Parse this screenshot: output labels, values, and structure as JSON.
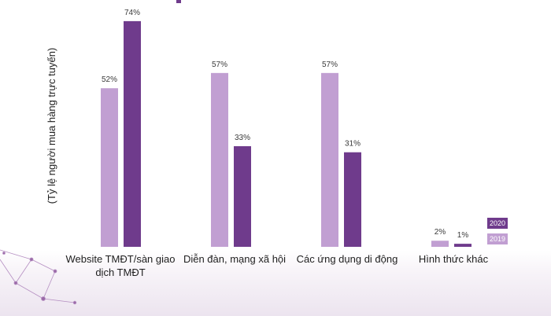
{
  "colors": {
    "y2019": "#c19fd2",
    "y2020": "#6f3b8c",
    "band": "#ece4ef",
    "deco": "#9b6aa8"
  },
  "chart_data": {
    "type": "bar",
    "ylabel": "(Tỷ lệ người mua hàng trực tuyến)",
    "ylim": [
      0,
      80
    ],
    "categories": [
      {
        "lines": [
          "Website TMĐT/sàn giao",
          "dịch TMĐT"
        ]
      },
      {
        "lines": [
          "Diễn đàn, mạng xã hội"
        ]
      },
      {
        "lines": [
          "Các ứng dụng di động"
        ]
      },
      {
        "lines": [
          "Hình thức khác"
        ]
      }
    ],
    "series": [
      {
        "name": "2019",
        "values": [
          52,
          57,
          57,
          2
        ],
        "labels": [
          "52%",
          "57%",
          "57%",
          "2%"
        ]
      },
      {
        "name": "2020",
        "values": [
          74,
          33,
          31,
          1
        ],
        "labels": [
          "74%",
          "33%",
          "31%",
          "1%"
        ]
      }
    ],
    "legend": [
      "2020",
      "2019"
    ]
  }
}
